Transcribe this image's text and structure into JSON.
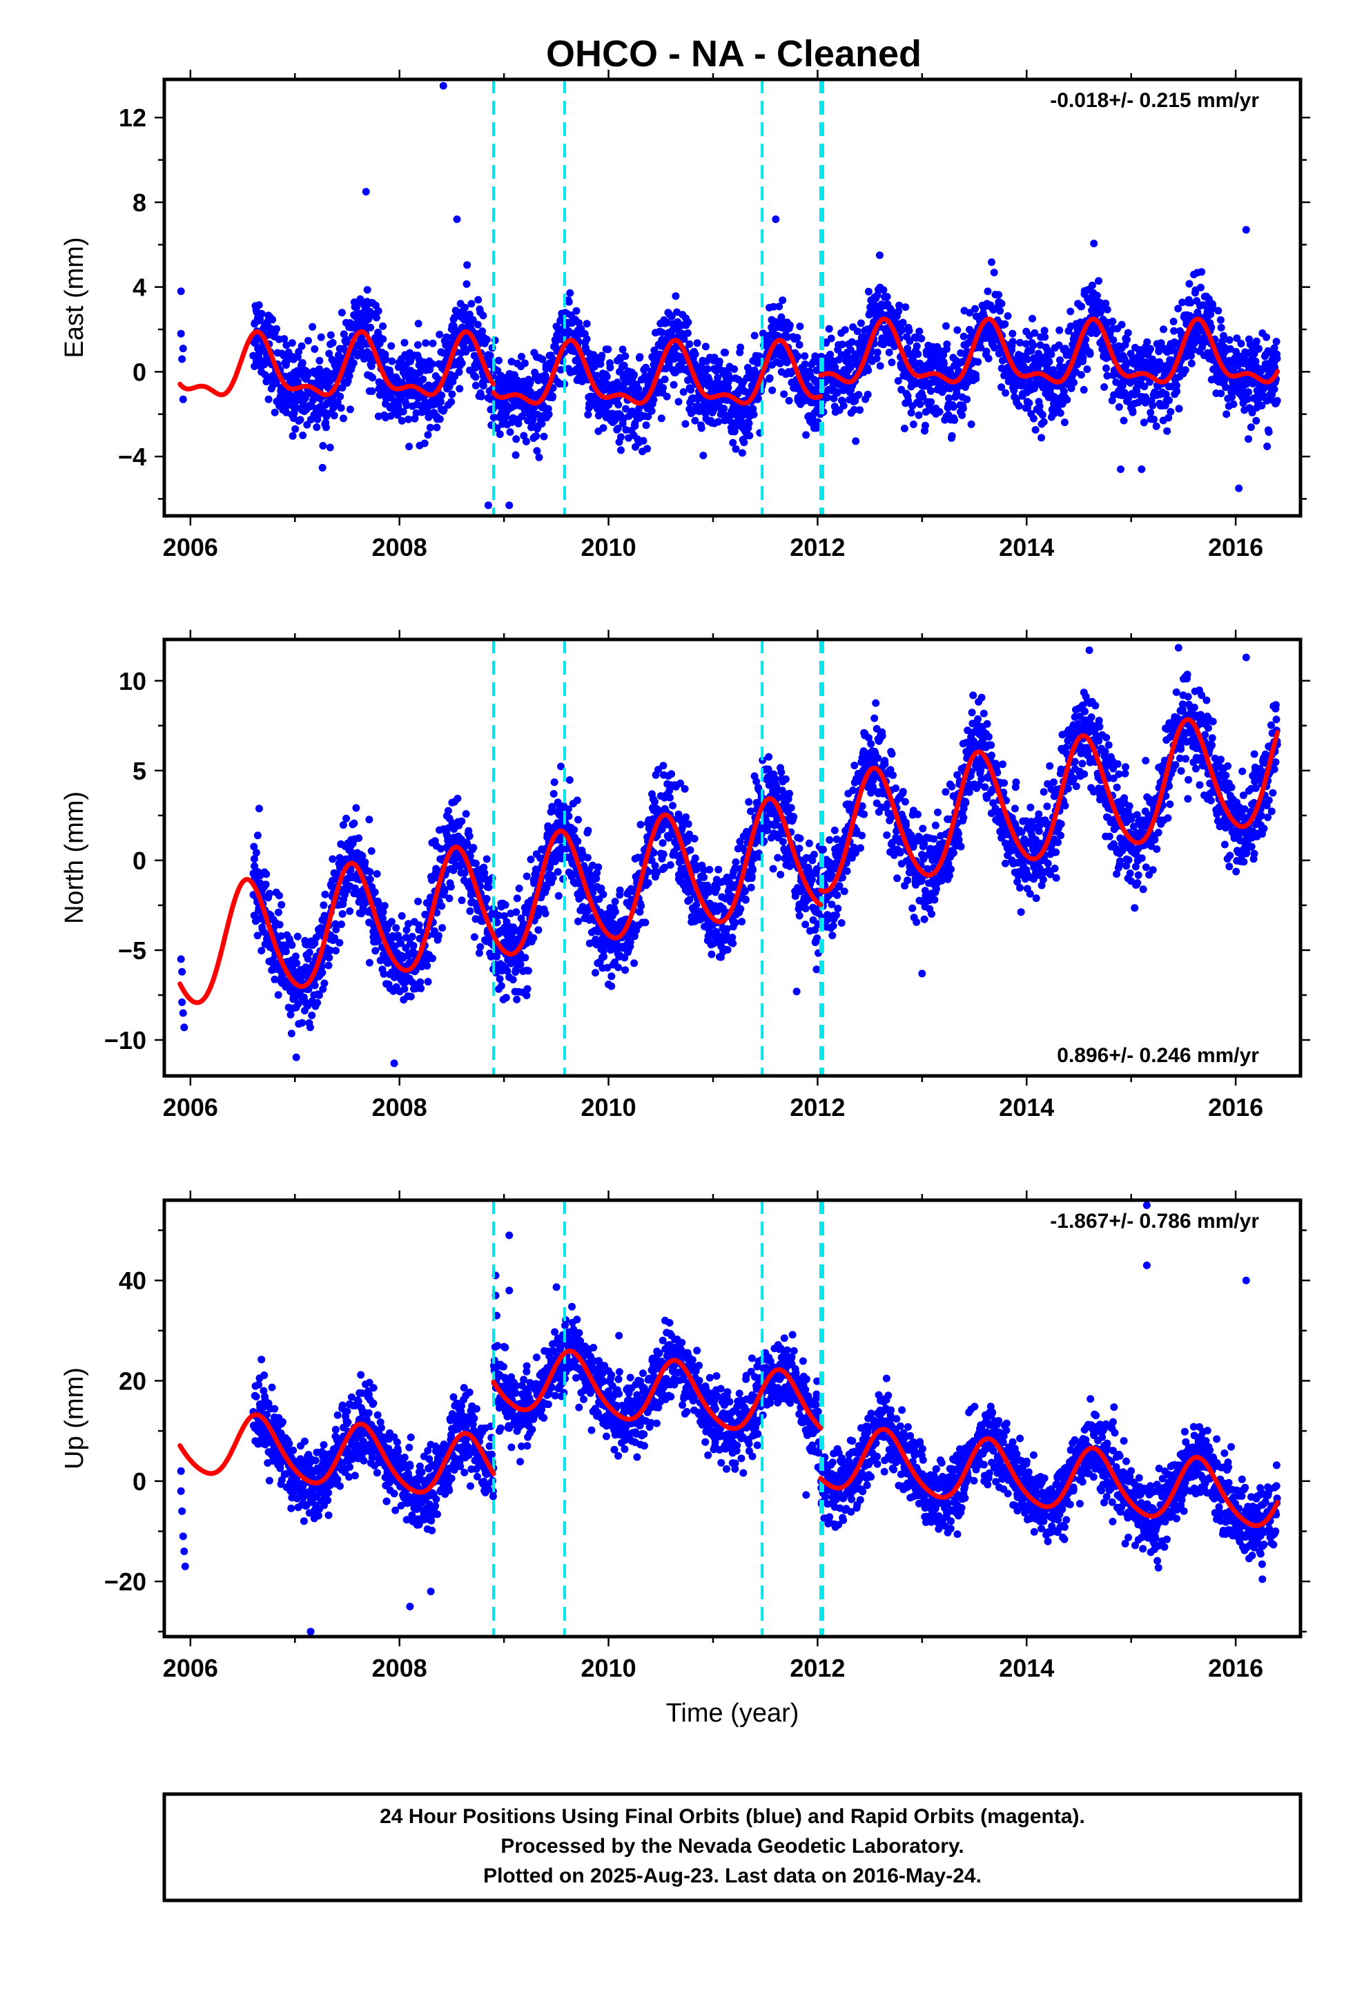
{
  "title": "OHCO  - NA - Cleaned",
  "xlabel": "Time (year)",
  "footer": [
    "24 Hour Positions Using Final Orbits (blue) and Rapid Orbits (magenta).",
    "Processed by the Nevada Geodetic Laboratory.",
    "Plotted on 2025-Aug-23. Last data on 2016-May-24."
  ],
  "colors": {
    "points": "#0000ff",
    "model": "#ff0000",
    "breaks": "#00e5ee"
  },
  "chart_data": [
    {
      "type": "scatter",
      "ylabel": "East (mm)",
      "rate": "-0.018+/- 0.215 mm/yr",
      "rate_position": "top-right",
      "xlim": [
        2005.75,
        2016.62
      ],
      "ylim": [
        -6.8,
        13.8
      ],
      "xticks": [
        2006,
        2008,
        2010,
        2012,
        2014,
        2016
      ],
      "yticks": [
        -4,
        0,
        4,
        8,
        12
      ],
      "breaks": [
        2008.9,
        2009.58,
        2011.47,
        2012.03,
        2012.05
      ],
      "model": {
        "segments": [
          {
            "from": 2005.9,
            "to": 2008.9,
            "offset": 0,
            "trend": 0
          },
          {
            "from": 2008.9,
            "to": 2012.03,
            "offset": -0.4,
            "trend": 0
          },
          {
            "from": 2012.03,
            "to": 2016.4,
            "offset": 0.6,
            "trend": 0
          }
        ],
        "annual": {
          "amplitude": 1.3,
          "peak": 0.65
        },
        "semiannual": {
          "amplitude": 0.6,
          "peak": 0.63
        }
      },
      "scatter": {
        "first_daily": 2006.6,
        "last": 2016.4,
        "noise_sd": 1.0,
        "density_per_year": 350
      },
      "outliers": [
        [
          2005.91,
          3.8
        ],
        [
          2005.91,
          1.8
        ],
        [
          2005.92,
          0.6
        ],
        [
          2005.93,
          1.1
        ],
        [
          2005.93,
          -1.3
        ],
        [
          2008.42,
          13.5
        ],
        [
          2007.68,
          8.5
        ],
        [
          2008.55,
          7.2
        ],
        [
          2011.6,
          7.2
        ],
        [
          2016.1,
          6.7
        ],
        [
          2008.85,
          -6.3
        ],
        [
          2009.05,
          -6.3
        ],
        [
          2016.03,
          -5.5
        ],
        [
          2014.9,
          -4.6
        ],
        [
          2015.1,
          -4.6
        ]
      ]
    },
    {
      "type": "scatter",
      "ylabel": "North (mm)",
      "rate": "0.896+/- 0.246 mm/yr",
      "rate_position": "bottom-right",
      "xlim": [
        2005.75,
        2016.62
      ],
      "ylim": [
        -12,
        12.3
      ],
      "xticks": [
        2006,
        2008,
        2010,
        2012,
        2014,
        2016
      ],
      "yticks": [
        -10,
        -5,
        0,
        5,
        10
      ],
      "breaks": [
        2008.9,
        2009.58,
        2011.47,
        2012.03,
        2012.05
      ],
      "model": {
        "segments": [
          {
            "from": 2005.9,
            "to": 2008.9,
            "offset": -0.5,
            "trend": 0.9
          },
          {
            "from": 2008.9,
            "to": 2012.03,
            "offset": -0.5,
            "trend": 0.9
          },
          {
            "from": 2012.03,
            "to": 2016.4,
            "offset": 0.3,
            "trend": 0.9
          }
        ],
        "annual": {
          "amplitude": 3.2,
          "peak": 0.55
        },
        "semiannual": {
          "amplitude": 0.3,
          "peak": 0.5
        }
      },
      "scatter": {
        "first_daily": 2006.6,
        "last": 2016.4,
        "noise_sd": 1.3,
        "density_per_year": 350
      },
      "outliers": [
        [
          2005.91,
          -5.5
        ],
        [
          2005.92,
          -6.2
        ],
        [
          2005.92,
          -7.9
        ],
        [
          2005.93,
          -8.5
        ],
        [
          2005.94,
          -9.3
        ],
        [
          2007.95,
          -11.3
        ],
        [
          2014.6,
          11.7
        ],
        [
          2016.1,
          11.3
        ],
        [
          2011.8,
          -7.3
        ],
        [
          2013.0,
          -6.3
        ]
      ]
    },
    {
      "type": "scatter",
      "ylabel": "Up (mm)",
      "rate": "-1.867+/- 0.786 mm/yr",
      "rate_position": "top-right",
      "xlim": [
        2005.75,
        2016.62
      ],
      "ylim": [
        -31,
        56
      ],
      "xticks": [
        2006,
        2008,
        2010,
        2012,
        2014,
        2016
      ],
      "yticks": [
        -20,
        0,
        20,
        40
      ],
      "breaks": [
        2008.9,
        2009.58,
        2011.47,
        2012.03,
        2012.05
      ],
      "model": {
        "segments": [
          {
            "from": 2005.9,
            "to": 2008.9,
            "offset": -1.8,
            "trend": -1.867
          },
          {
            "from": 2008.9,
            "to": 2012.03,
            "offset": 16.5,
            "trend": -1.867
          },
          {
            "from": 2012.03,
            "to": 2016.4,
            "offset": 6.5,
            "trend": -1.867
          }
        ],
        "annual": {
          "amplitude": 6.2,
          "peak": 0.65
        },
        "semiannual": {
          "amplitude": 0.8,
          "peak": 0.6
        }
      },
      "scatter": {
        "first_daily": 2006.6,
        "last": 2016.4,
        "noise_sd": 3.6,
        "density_per_year": 350
      },
      "outliers": [
        [
          2005.91,
          2
        ],
        [
          2005.91,
          -2
        ],
        [
          2005.92,
          -6
        ],
        [
          2005.93,
          -11
        ],
        [
          2005.94,
          -14
        ],
        [
          2005.95,
          -17
        ],
        [
          2008.92,
          41
        ],
        [
          2008.92,
          37
        ],
        [
          2008.93,
          33
        ],
        [
          2009.05,
          49
        ],
        [
          2009.05,
          38
        ],
        [
          2010.1,
          29
        ],
        [
          2011.7,
          25
        ],
        [
          2015.15,
          55
        ],
        [
          2015.15,
          43
        ],
        [
          2016.1,
          40
        ],
        [
          2007.15,
          -30
        ],
        [
          2008.1,
          -25
        ],
        [
          2008.3,
          -22
        ]
      ]
    }
  ]
}
